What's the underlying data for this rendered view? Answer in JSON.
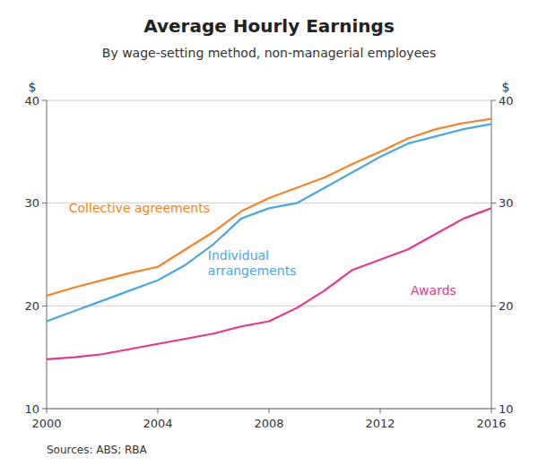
{
  "chart_data": {
    "type": "line",
    "title": "Average Hourly Earnings",
    "subtitle": "By wage-setting method, non-managerial employees",
    "source": "Sources: ABS; RBA",
    "ylabel": "$",
    "y2label": "$",
    "x": [
      2000,
      2001,
      2002,
      2003,
      2004,
      2005,
      2006,
      2007,
      2008,
      2009,
      2010,
      2011,
      2012,
      2013,
      2014,
      2015,
      2016
    ],
    "xlim": [
      2000,
      2016
    ],
    "xticks": [
      2000,
      2004,
      2008,
      2012,
      2016
    ],
    "ylim": [
      10,
      40
    ],
    "yticks": [
      10,
      20,
      30,
      40
    ],
    "y2lim": [
      10,
      40
    ],
    "y2ticks": [
      10,
      20,
      30,
      40
    ],
    "grid": "y",
    "series": [
      {
        "name": "Collective agreements",
        "color": "#F4842A",
        "values": [
          21.0,
          21.8,
          22.5,
          23.2,
          23.8,
          25.5,
          27.2,
          29.2,
          30.5,
          31.5,
          32.5,
          33.8,
          35.0,
          36.3,
          37.2,
          37.8,
          38.2
        ],
        "label_x": 2006.0,
        "label_y": 29.5
      },
      {
        "name": "Individual\narrangements",
        "color": "#4CA8DC",
        "values": [
          18.5,
          19.5,
          20.5,
          21.5,
          22.5,
          24.0,
          26.0,
          28.5,
          29.5,
          30.0,
          31.5,
          33.0,
          34.5,
          35.8,
          36.5,
          37.2,
          37.7
        ],
        "label_x": 2005.8,
        "label_y": 24.2
      },
      {
        "name": "Awards",
        "color": "#E8368F",
        "values": [
          14.8,
          15.0,
          15.3,
          15.8,
          16.3,
          16.8,
          17.3,
          18.0,
          18.5,
          19.8,
          21.5,
          23.5,
          24.5,
          25.5,
          27.0,
          28.5,
          29.5
        ],
        "label_x": 2013.1,
        "label_y": 21.5
      }
    ]
  }
}
